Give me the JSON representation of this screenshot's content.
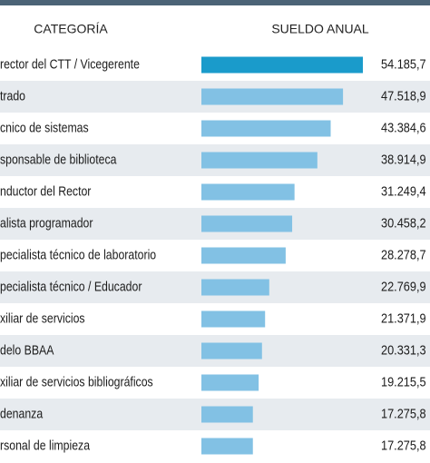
{
  "chart_data": {
    "type": "bar",
    "headers": [
      "CATEGORÍA",
      "SUELDO ANUAL"
    ],
    "categories": [
      "rector del CTT / Vicegerente",
      "trado",
      "cnico de sistemas",
      "sponsable de biblioteca",
      "nductor del Rector",
      "alista programador",
      "pecialista técnico de laboratorio",
      "pecialista técnico / Educador",
      "xiliar de servicios",
      "delo BBAA",
      "xiliar de servicios bibliográficos",
      "denanza",
      "rsonal de limpieza"
    ],
    "values": [
      54185.7,
      47518.9,
      43384.6,
      38914.9,
      31249.4,
      30458.2,
      28278.7,
      22769.9,
      21371.9,
      20331.3,
      19215.5,
      17275.8,
      17275.8
    ],
    "value_labels": [
      "54.185,7",
      "47.518,9",
      "43.384,6",
      "38.914,9",
      "31.249,4",
      "30.458,2",
      "28.278,7",
      "22.769,9",
      "21.371,9",
      "20.331,3",
      "19.215,5",
      "17.275,8",
      "17.275,8"
    ],
    "bar_colors": [
      "#1a9bcb",
      "#82c1e4",
      "#82c1e4",
      "#82c1e4",
      "#82c1e4",
      "#82c1e4",
      "#82c1e4",
      "#82c1e4",
      "#82c1e4",
      "#82c1e4",
      "#82c1e4",
      "#82c1e4",
      "#82c1e4"
    ]
  }
}
